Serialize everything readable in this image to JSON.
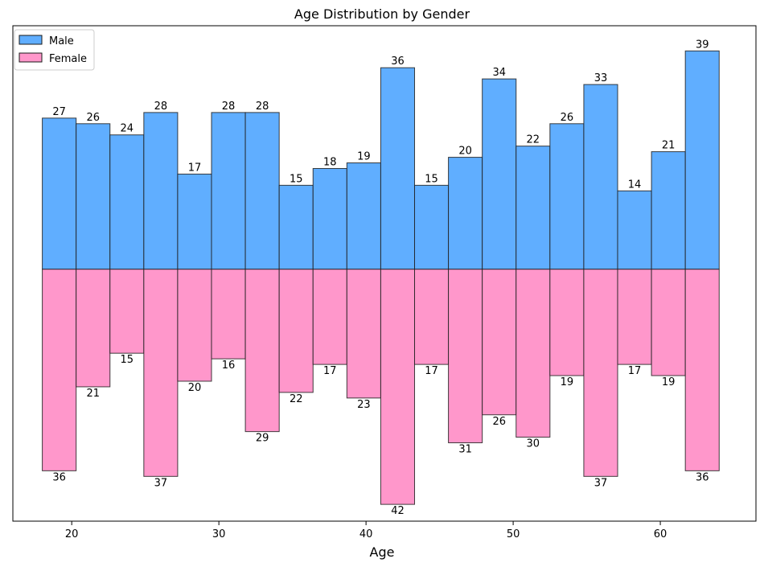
{
  "chart_data": {
    "type": "bar",
    "title": "Age Distribution by Gender",
    "xlabel": "Age",
    "ylabel": "",
    "x_ticks": [
      20,
      30,
      40,
      50,
      60
    ],
    "xlim": [
      16,
      66.5
    ],
    "ylim": [
      -45,
      43.5
    ],
    "bins": {
      "start": 18,
      "end": 64,
      "count": 20
    },
    "legend_position": "top-left",
    "grid": false,
    "series": [
      {
        "name": "Male",
        "color": "#60aeff",
        "values": [
          27,
          26,
          24,
          28,
          17,
          28,
          28,
          15,
          18,
          19,
          36,
          15,
          20,
          34,
          22,
          26,
          33,
          14,
          21,
          39
        ]
      },
      {
        "name": "Female",
        "color": "#ff97cb",
        "values": [
          36,
          21,
          15,
          37,
          20,
          16,
          29,
          22,
          17,
          23,
          42,
          17,
          31,
          26,
          30,
          19,
          37,
          17,
          19,
          36
        ]
      }
    ]
  }
}
